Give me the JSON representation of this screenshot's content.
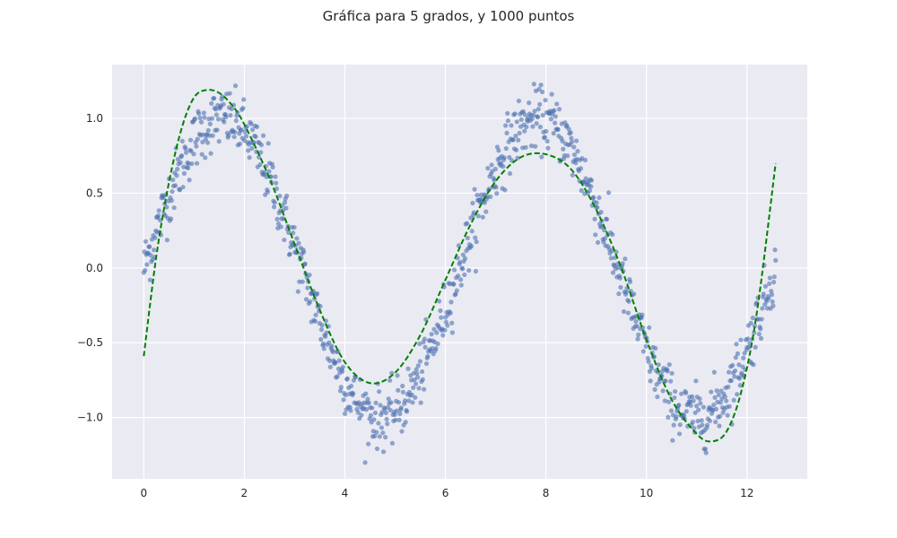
{
  "chart_data": {
    "type": "scatter",
    "title": "Gráfica para 5 grados, y 1000 puntos",
    "xlabel": "",
    "ylabel": "",
    "xlim": [
      -0.63,
      13.2
    ],
    "ylim": [
      -1.41,
      1.36
    ],
    "x_ticks": [
      0,
      2,
      4,
      6,
      8,
      10,
      12
    ],
    "x_tick_labels": [
      "0",
      "2",
      "4",
      "6",
      "8",
      "10",
      "12"
    ],
    "y_ticks": [
      -1.0,
      -0.5,
      0.0,
      0.5,
      1.0
    ],
    "y_tick_labels": [
      "−1.0",
      "−0.5",
      "0.0",
      "0.5",
      "1.0"
    ],
    "grid": true,
    "background": "#eaeaf2",
    "series": [
      {
        "kind": "scatter",
        "color": "#4c72b0",
        "n_points": 1000,
        "x_range": [
          0,
          12.57
        ],
        "trend": "sin(x)",
        "noise_sd": 0.1
      },
      {
        "kind": "line",
        "style": "dashed",
        "color": "#008000",
        "x": [
          0,
          0.25,
          0.5,
          0.75,
          1.0,
          1.25,
          1.5,
          1.75,
          2.0,
          2.5,
          3.0,
          3.5,
          4.0,
          4.5,
          5.0,
          5.5,
          6.0,
          6.5,
          7.0,
          7.5,
          8.0,
          8.5,
          9.0,
          9.5,
          10.0,
          10.5,
          11.0,
          11.3,
          11.6,
          11.9,
          12.2,
          12.57
        ],
        "y": [
          -0.59,
          0.08,
          0.57,
          0.93,
          1.14,
          1.19,
          1.17,
          1.09,
          0.96,
          0.6,
          0.16,
          -0.28,
          -0.63,
          -0.77,
          -0.7,
          -0.45,
          -0.08,
          0.29,
          0.58,
          0.74,
          0.76,
          0.66,
          0.39,
          0.0,
          -0.48,
          -0.88,
          -1.11,
          -1.16,
          -1.09,
          -0.81,
          -0.29,
          0.7
        ]
      }
    ]
  }
}
